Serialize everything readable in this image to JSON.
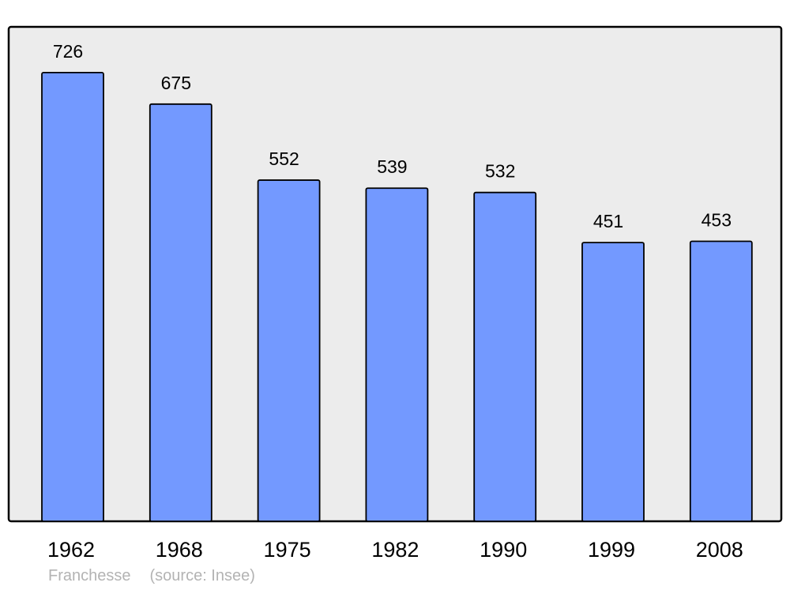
{
  "chart_data": {
    "type": "bar",
    "categories": [
      "1962",
      "1968",
      "1975",
      "1982",
      "1990",
      "1999",
      "2008"
    ],
    "values": [
      726,
      675,
      552,
      539,
      532,
      451,
      453
    ],
    "title": "",
    "xlabel": "",
    "ylabel": "",
    "ylim": [
      0,
      800
    ],
    "grid": false,
    "data_labels": true,
    "colors": {
      "bar": "#7399ff",
      "background": "#ececec",
      "border": "#000000",
      "footer": "#b3b3b3"
    }
  },
  "footer": {
    "place": "Franchesse",
    "source": "(source: Insee)"
  }
}
